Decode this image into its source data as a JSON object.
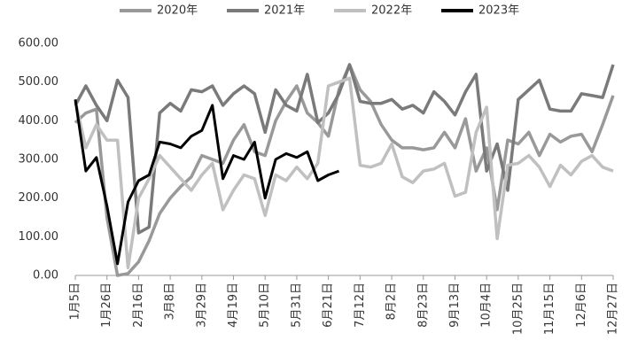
{
  "chart_data": {
    "type": "line",
    "categories": [
      "1月5日",
      null,
      null,
      "1月26日",
      null,
      null,
      "2月16日",
      null,
      null,
      "3月8日",
      null,
      null,
      "3月29日",
      null,
      null,
      "4月19日",
      null,
      null,
      "5月10日",
      null,
      null,
      "5月31日",
      null,
      null,
      "6月21日",
      null,
      null,
      "7月12日",
      null,
      null,
      "8月2日",
      null,
      null,
      "8月23日",
      null,
      null,
      "9月13日",
      null,
      null,
      "10月4日",
      null,
      null,
      "10月25日",
      null,
      null,
      "11月15日",
      null,
      null,
      "12月6日",
      null,
      null,
      "12月27日"
    ],
    "series": [
      {
        "name": "2020年",
        "color": "#999999",
        "values": [
          395,
          420,
          430,
          150,
          0,
          5,
          35,
          90,
          160,
          200,
          230,
          255,
          310,
          300,
          290,
          350,
          390,
          320,
          310,
          400,
          450,
          490,
          420,
          395,
          360,
          480,
          545,
          480,
          450,
          390,
          350,
          330,
          330,
          325,
          330,
          370,
          330,
          405,
          270,
          330,
          170,
          350,
          340,
          370,
          310,
          365,
          345,
          360,
          365,
          320,
          390,
          465
        ]
      },
      {
        "name": "2021年",
        "color": "#7a7a7a",
        "values": [
          440,
          490,
          440,
          400,
          505,
          460,
          110,
          125,
          420,
          445,
          425,
          480,
          475,
          490,
          440,
          470,
          490,
          470,
          370,
          480,
          440,
          425,
          520,
          395,
          420,
          470,
          545,
          450,
          445,
          445,
          455,
          430,
          440,
          420,
          475,
          450,
          415,
          475,
          520,
          270,
          340,
          220,
          455,
          480,
          505,
          430,
          425,
          425,
          470,
          465,
          460,
          545
        ]
      },
      {
        "name": "2022年",
        "color": "#c0c0c0",
        "values": [
          450,
          330,
          390,
          350,
          350,
          20,
          200,
          250,
          310,
          280,
          250,
          220,
          260,
          290,
          170,
          220,
          260,
          250,
          155,
          260,
          245,
          280,
          250,
          290,
          490,
          500,
          510,
          285,
          280,
          290,
          340,
          255,
          240,
          270,
          275,
          290,
          205,
          215,
          370,
          435,
          95,
          285,
          290,
          310,
          280,
          230,
          285,
          260,
          295,
          310,
          280,
          270
        ]
      },
      {
        "name": "2023年",
        "color": "#000000",
        "values": [
          455,
          270,
          305,
          180,
          30,
          190,
          245,
          260,
          345,
          340,
          330,
          360,
          375,
          440,
          250,
          310,
          300,
          345,
          200,
          300,
          315,
          305,
          320,
          245,
          260,
          270,
          null,
          null,
          null,
          null,
          null,
          null,
          null,
          null,
          null,
          null,
          null,
          null,
          null,
          null,
          null,
          null,
          null,
          null,
          null,
          null,
          null,
          null,
          null,
          null,
          null,
          null
        ]
      }
    ],
    "ylim": [
      0,
      600
    ],
    "yticks": [
      {
        "value": 0,
        "label": "0.00"
      },
      {
        "value": 100,
        "label": "100.00"
      },
      {
        "value": 200,
        "label": "200.00"
      },
      {
        "value": 300,
        "label": "300.00"
      },
      {
        "value": 400,
        "label": "400.00"
      },
      {
        "value": 500,
        "label": "500.00"
      },
      {
        "value": 600,
        "label": "600.00"
      }
    ],
    "legend": "top"
  }
}
